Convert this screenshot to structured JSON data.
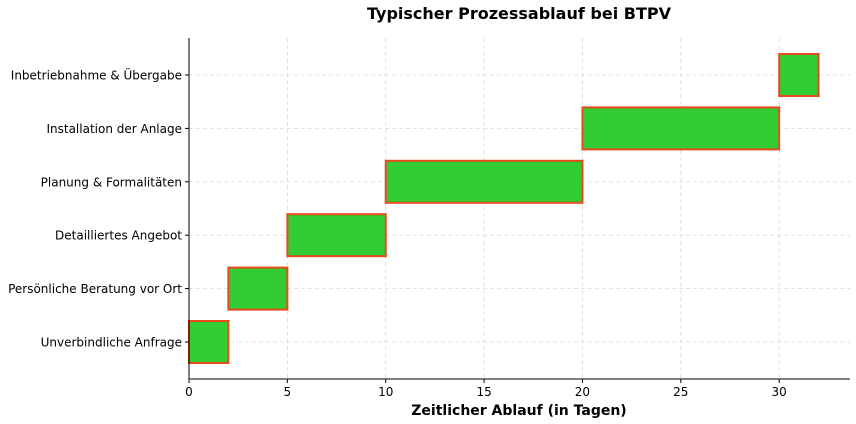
{
  "chart_data": {
    "type": "bar",
    "orientation": "horizontal-gantt",
    "title": "Typischer Prozessablauf bei BTPV",
    "xlabel": "Zeitlicher Ablauf (in Tagen)",
    "ylabel": "",
    "xlim": [
      0,
      33.6
    ],
    "xticks": [
      0,
      5,
      10,
      15,
      20,
      25,
      30
    ],
    "grid": true,
    "colors": {
      "bar_fill": "#32cd32",
      "bar_edge": "#e8491d"
    },
    "tasks": [
      {
        "name": "Unverbindliche Anfrage",
        "start": 0,
        "end": 2
      },
      {
        "name": "Persönliche Beratung vor Ort",
        "start": 2,
        "end": 5
      },
      {
        "name": "Detailliertes Angebot",
        "start": 5,
        "end": 10
      },
      {
        "name": "Planung & Formalitäten",
        "start": 10,
        "end": 20
      },
      {
        "name": "Installation der Anlage",
        "start": 20,
        "end": 30
      },
      {
        "name": "Inbetriebnahme & Übergabe",
        "start": 30,
        "end": 32
      }
    ]
  }
}
